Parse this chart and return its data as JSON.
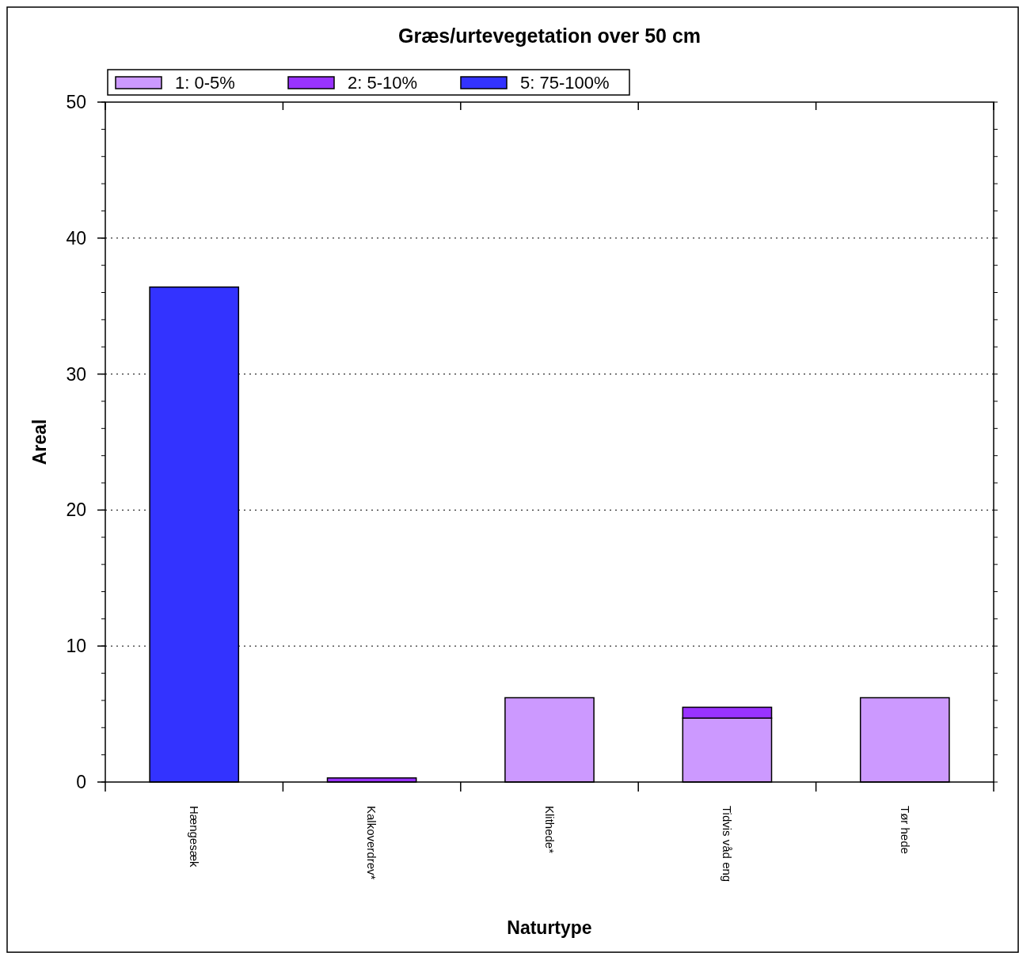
{
  "chart_data": {
    "type": "bar",
    "title": "Græs/urtevegetation over 50 cm",
    "xlabel": "Naturtype",
    "ylabel": "Areal",
    "categories": [
      "Hængesæk",
      "Kalkoverdrev*",
      "Klithede*",
      "Tidvis våd eng",
      "Tør hede"
    ],
    "stacked": true,
    "series": [
      {
        "name": "1: 0-5%",
        "color": "#cc99ff",
        "values": [
          null,
          null,
          6.2,
          4.7,
          6.2
        ]
      },
      {
        "name": "2: 5-10%",
        "color": "#9933ff",
        "values": [
          null,
          0.3,
          null,
          0.8,
          null
        ]
      },
      {
        "name": "5: 75-100%",
        "color": "#3333ff",
        "values": [
          36.4,
          null,
          null,
          null,
          null
        ]
      }
    ],
    "ylim": [
      0,
      50
    ],
    "yticks": [
      0,
      10,
      20,
      30,
      40,
      50
    ],
    "grid": "y",
    "legend": "top left"
  }
}
